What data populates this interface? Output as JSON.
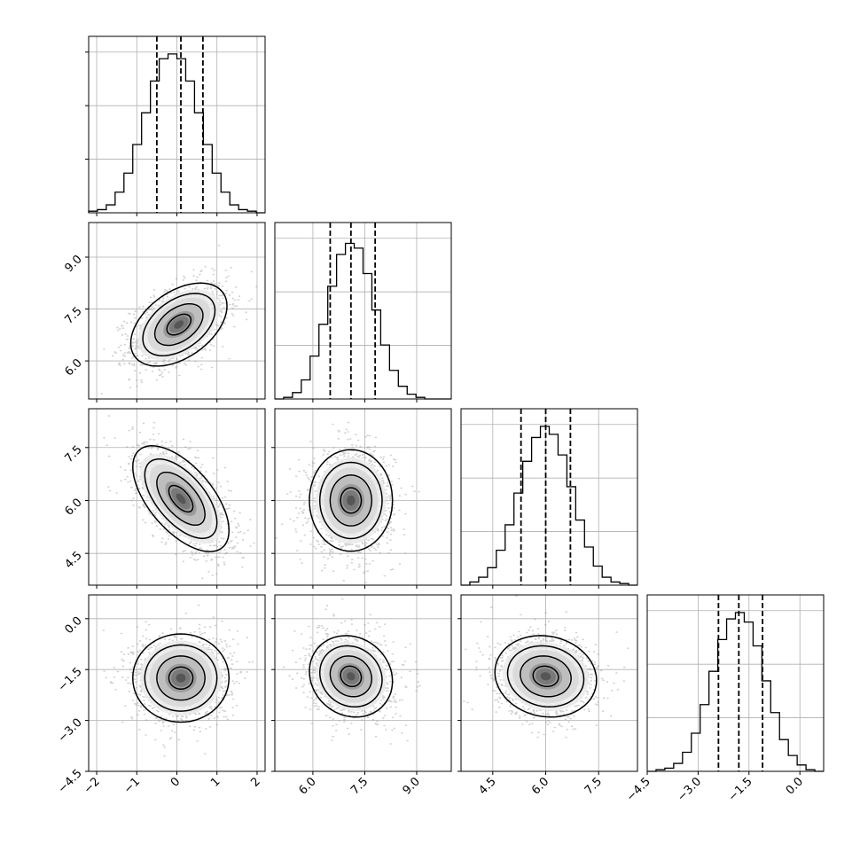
{
  "chart_data": {
    "type": "corner",
    "grid": true,
    "n_params": 4,
    "params": [
      {
        "range": [
          -2.2,
          2.2
        ],
        "ticks": [
          -2,
          -1,
          0,
          1,
          2
        ],
        "tick_labels": [
          "−2",
          "−1",
          "0",
          "1",
          "2"
        ]
      },
      {
        "range": [
          4.9,
          10.0
        ],
        "ticks": [
          6.0,
          7.5,
          9.0
        ],
        "tick_labels": [
          "6.0",
          "7.5",
          "9.0"
        ]
      },
      {
        "range": [
          3.6,
          8.6
        ],
        "ticks": [
          4.5,
          6.0,
          7.5
        ],
        "tick_labels": [
          "4.5",
          "6.0",
          "7.5"
        ]
      },
      {
        "range": [
          -4.5,
          0.7
        ],
        "ticks": [
          -4.5,
          -3.0,
          -1.5,
          0.0
        ],
        "tick_labels": [
          "−4.5",
          "−3.0",
          "−1.5",
          "0.0"
        ]
      }
    ],
    "quantiles": [
      [
        -0.5,
        0.1,
        0.65
      ],
      [
        6.5,
        7.1,
        7.8
      ],
      [
        5.3,
        6.0,
        6.7
      ],
      [
        -2.4,
        -1.8,
        -1.1
      ]
    ],
    "histograms": [
      {
        "edges": [
          -2.2,
          -1.98,
          -1.76,
          -1.54,
          -1.32,
          -1.1,
          -0.88,
          -0.66,
          -0.44,
          -0.22,
          0.0,
          0.22,
          0.44,
          0.66,
          0.88,
          1.1,
          1.32,
          1.54,
          1.76,
          1.98,
          2.2
        ],
        "counts": [
          0.01,
          0.02,
          0.05,
          0.13,
          0.25,
          0.43,
          0.63,
          0.83,
          0.97,
          1.0,
          0.97,
          0.83,
          0.63,
          0.43,
          0.25,
          0.13,
          0.05,
          0.02,
          0.01,
          0.0
        ]
      },
      {
        "edges": [
          4.9,
          5.155,
          5.41,
          5.665,
          5.92,
          6.175,
          6.43,
          6.685,
          6.94,
          7.195,
          7.45,
          7.705,
          7.96,
          8.215,
          8.47,
          8.725,
          8.98,
          9.235,
          9.49,
          9.745,
          10.0
        ],
        "counts": [
          0.0,
          0.01,
          0.04,
          0.12,
          0.27,
          0.47,
          0.71,
          0.91,
          0.98,
          0.95,
          0.79,
          0.56,
          0.34,
          0.18,
          0.08,
          0.03,
          0.01,
          0.0,
          0.0,
          0.0
        ]
      },
      {
        "edges": [
          3.6,
          3.85,
          4.1,
          4.35,
          4.6,
          4.85,
          5.1,
          5.35,
          5.6,
          5.85,
          6.1,
          6.35,
          6.6,
          6.85,
          7.1,
          7.35,
          7.6,
          7.85,
          8.1,
          8.35,
          8.6
        ],
        "counts": [
          0.0,
          0.02,
          0.05,
          0.11,
          0.22,
          0.38,
          0.58,
          0.78,
          0.93,
          1.0,
          0.95,
          0.82,
          0.62,
          0.41,
          0.24,
          0.12,
          0.05,
          0.02,
          0.01,
          0.0
        ]
      },
      {
        "edges": [
          -4.5,
          -4.24,
          -3.98,
          -3.72,
          -3.46,
          -3.2,
          -2.94,
          -2.68,
          -2.42,
          -2.16,
          -1.9,
          -1.64,
          -1.38,
          -1.12,
          -0.86,
          -0.6,
          -0.34,
          -0.08,
          0.18,
          0.44,
          0.7
        ],
        "counts": [
          0.0,
          0.01,
          0.02,
          0.05,
          0.12,
          0.24,
          0.42,
          0.63,
          0.83,
          0.96,
          1.0,
          0.94,
          0.79,
          0.57,
          0.37,
          0.2,
          0.1,
          0.04,
          0.01,
          0.0
        ]
      }
    ],
    "pairs": [
      {
        "x": 0,
        "y": 1,
        "mean": [
          0.05,
          7.05
        ],
        "sd": [
          0.6,
          0.6
        ],
        "rho": 0.45
      },
      {
        "x": 0,
        "y": 2,
        "mean": [
          0.1,
          6.05
        ],
        "sd": [
          0.6,
          0.75
        ],
        "rho": -0.6
      },
      {
        "x": 1,
        "y": 2,
        "mean": [
          7.1,
          6.0
        ],
        "sd": [
          0.6,
          0.72
        ],
        "rho": 0.0
      },
      {
        "x": 0,
        "y": 3,
        "mean": [
          0.1,
          -1.75
        ],
        "sd": [
          0.6,
          0.65
        ],
        "rho": 0.0
      },
      {
        "x": 1,
        "y": 3,
        "mean": [
          7.1,
          -1.7
        ],
        "sd": [
          0.6,
          0.6
        ],
        "rho": -0.12
      },
      {
        "x": 2,
        "y": 3,
        "mean": [
          6.0,
          -1.7
        ],
        "sd": [
          0.72,
          0.6
        ],
        "rho": -0.1
      }
    ],
    "contour_levels_sigma": [
      0.5,
      1.0,
      1.5,
      2.0
    ]
  }
}
